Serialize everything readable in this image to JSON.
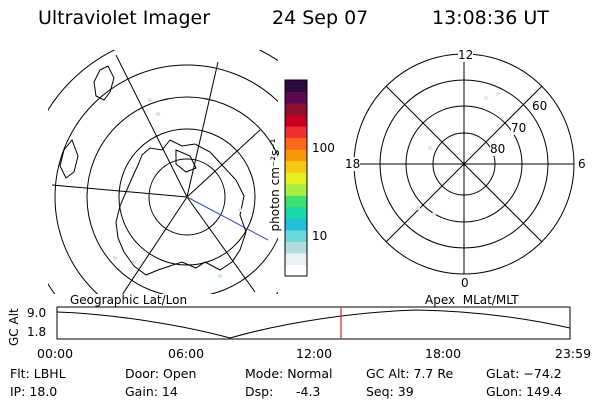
{
  "header": {
    "instrument": "Ultraviolet Imager",
    "date": "24 Sep 07",
    "time": "13:08:36 UT"
  },
  "colorbar": {
    "unit_label": "photon cm⁻²s⁻¹",
    "tick_high": "100",
    "tick_low": "10",
    "colors": [
      "#ffffff",
      "#e8f2f2",
      "#b5dde0",
      "#6ad8dc",
      "#22c0d8",
      "#18d8a8",
      "#40e070",
      "#a8f040",
      "#e8f020",
      "#f8c818",
      "#f89808",
      "#f86818",
      "#f03030",
      "#c80020",
      "#8c1030",
      "#5a0a50",
      "#2a0a40"
    ]
  },
  "left_map": {
    "caption": "Geographic Lat/Lon"
  },
  "right_map": {
    "caption": "Apex  MLat/MLT",
    "mlt_labels": {
      "top": "12",
      "bottom": "0",
      "left": "18",
      "right": "6"
    },
    "lat_labels": [
      "60",
      "70",
      "80"
    ]
  },
  "altitude_plot": {
    "axis_label": "GC Alt",
    "y_ticks": [
      "9.0",
      "1.8"
    ],
    "x_ticks": [
      "00:00",
      "06:00",
      "12:00",
      "18:00",
      "23:59"
    ],
    "marker_color": "#d02020"
  },
  "status": {
    "flt": "Flt: LBHL",
    "ip": "IP: 18.0",
    "door": "Door: Open",
    "gain": "Gain: 14",
    "mode": "Mode: Normal",
    "dsp": "Dsp:",
    "dsp_value": "-4.3",
    "gc_alt": "GC Alt: 7.7 Re",
    "seq": "Seq: 39",
    "glat": "GLat: −74.2",
    "glon": "GLon: 149.4"
  }
}
